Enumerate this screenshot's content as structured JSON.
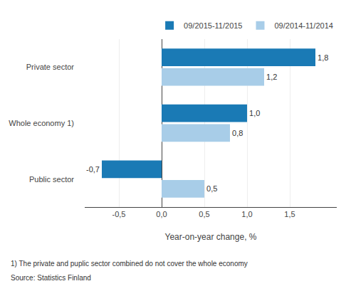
{
  "chart_data": {
    "type": "bar",
    "orientation": "horizontal",
    "categories": [
      "Public sector",
      "Whole economy 1)",
      "Private sector"
    ],
    "series": [
      {
        "name": "09/2015-11/2015",
        "color": "#1a7ab5",
        "values": [
          -0.7,
          1.0,
          1.8
        ],
        "value_labels": [
          "-0,7",
          "1,0",
          "1,8"
        ]
      },
      {
        "name": "09/2014-11/2014",
        "color": "#a8cde8",
        "values": [
          0.5,
          0.8,
          1.2
        ],
        "value_labels": [
          "0,5",
          "0,8",
          "1,2"
        ]
      }
    ],
    "xlabel": "Year-on-year change, %",
    "xlim": [
      -0.9,
      2.05
    ],
    "xticks": [
      {
        "value": -0.5,
        "label": "-0,5"
      },
      {
        "value": 0.0,
        "label": "0,0"
      },
      {
        "value": 0.5,
        "label": "0,5"
      },
      {
        "value": 1.0,
        "label": "1,0"
      },
      {
        "value": 1.5,
        "label": "1,5"
      }
    ],
    "grid": true,
    "legend": "top",
    "data_labels": true,
    "annotations": [
      "1) The private and puplic sector combined do not cover the whole economy",
      "Source: Statistics Finland"
    ]
  }
}
